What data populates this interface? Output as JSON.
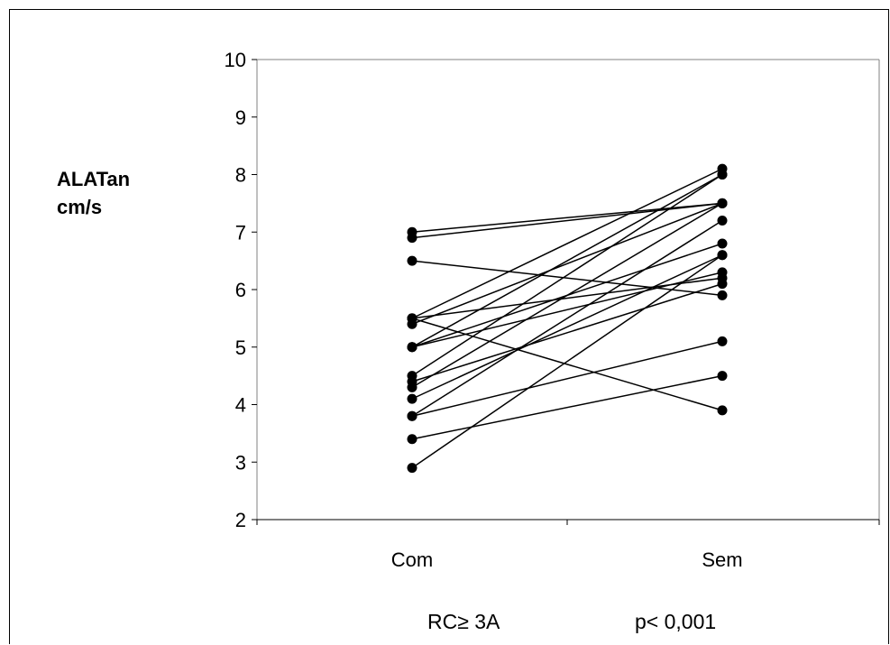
{
  "chart_data": {
    "type": "line",
    "categories": [
      "Com",
      "Sem"
    ],
    "ylabel": [
      "ALATan",
      "cm/s"
    ],
    "ylim": [
      2,
      10
    ],
    "yticks": [
      "2",
      "3",
      "4",
      "5",
      "6",
      "7",
      "8",
      "9",
      "10"
    ],
    "grid": false,
    "annotations": [
      "RC≥ 3A",
      "p< 0,001"
    ],
    "series": [
      {
        "values": [
          7.0,
          7.5
        ]
      },
      {
        "values": [
          6.9,
          7.5
        ]
      },
      {
        "values": [
          6.5,
          5.9
        ]
      },
      {
        "values": [
          5.5,
          8.1
        ]
      },
      {
        "values": [
          5.5,
          6.2
        ]
      },
      {
        "values": [
          5.4,
          7.5
        ]
      },
      {
        "values": [
          5.5,
          3.9
        ]
      },
      {
        "values": [
          5.0,
          8.0
        ]
      },
      {
        "values": [
          5.0,
          6.8
        ]
      },
      {
        "values": [
          5.0,
          6.3
        ]
      },
      {
        "values": [
          4.5,
          8.0
        ]
      },
      {
        "values": [
          4.4,
          6.1
        ]
      },
      {
        "values": [
          4.3,
          7.5
        ]
      },
      {
        "values": [
          4.1,
          6.6
        ]
      },
      {
        "values": [
          3.8,
          7.2
        ]
      },
      {
        "values": [
          3.8,
          5.1
        ]
      },
      {
        "values": [
          3.4,
          4.5
        ]
      },
      {
        "values": [
          2.9,
          6.6
        ]
      }
    ]
  }
}
